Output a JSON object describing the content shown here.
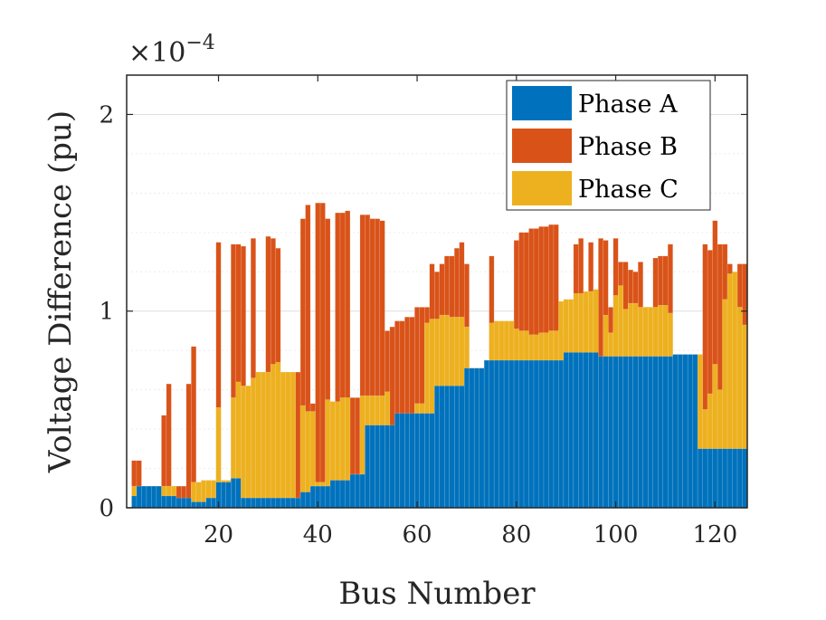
{
  "chart_data": {
    "type": "bar",
    "xlabel": "Bus Number",
    "ylabel": "Voltage Difference (pu)",
    "exponent_prefix": "×10",
    "exponent_power": "−4",
    "xlim": [
      2,
      126
    ],
    "ylim": [
      0,
      2.2
    ],
    "xticks": [
      "20",
      "40",
      "60",
      "80",
      "100",
      "120"
    ],
    "xtick_values": [
      20,
      40,
      60,
      80,
      100,
      120
    ],
    "yticks": [
      "0",
      "1",
      "2"
    ],
    "ytick_values": [
      0,
      1,
      2
    ],
    "grid": true,
    "legend_position": "top-right",
    "series": [
      {
        "name": "Phase A",
        "color": "#0072BD",
        "segments": [
          [
            3,
            3,
            0.06
          ],
          [
            4,
            8,
            0.11
          ],
          [
            9,
            11,
            0.06
          ],
          [
            12,
            14,
            0.05
          ],
          [
            15,
            17,
            0.03
          ],
          [
            18,
            19,
            0.05
          ],
          [
            20,
            22,
            0.13
          ],
          [
            23,
            24,
            0.15
          ],
          [
            25,
            28,
            0.05
          ],
          [
            29,
            31,
            0.05
          ],
          [
            32,
            34,
            0.05
          ],
          [
            35,
            36,
            0.05
          ],
          [
            37,
            38,
            0.08
          ],
          [
            39,
            42,
            0.11
          ],
          [
            43,
            46,
            0.14
          ],
          [
            47,
            49,
            0.17
          ],
          [
            50,
            55,
            0.42
          ],
          [
            56,
            63,
            0.48
          ],
          [
            64,
            69,
            0.62
          ],
          [
            70,
            73,
            0.71
          ],
          [
            74,
            89,
            0.75
          ],
          [
            90,
            91,
            0.79
          ],
          [
            92,
            96,
            0.79
          ],
          [
            97,
            98,
            0.77
          ],
          [
            99,
            111,
            0.77
          ],
          [
            112,
            116,
            0.78
          ],
          [
            117,
            126,
            0.3
          ]
        ]
      },
      {
        "name": "Phase B",
        "color": "#D95319",
        "segments": [
          [
            3,
            4,
            0.24
          ],
          [
            5,
            8,
            0.11
          ],
          [
            9,
            9,
            0.47
          ],
          [
            10,
            10,
            0.63
          ],
          [
            11,
            13,
            0.11
          ],
          [
            14,
            14,
            0.63
          ],
          [
            15,
            15,
            0.82
          ],
          [
            16,
            19,
            0.13
          ],
          [
            20,
            20,
            1.35
          ],
          [
            21,
            22,
            0.13
          ],
          [
            23,
            24,
            1.34
          ],
          [
            25,
            25,
            1.33
          ],
          [
            26,
            26,
            0.62
          ],
          [
            27,
            27,
            1.37
          ],
          [
            28,
            29,
            0.69
          ],
          [
            30,
            30,
            1.38
          ],
          [
            31,
            31,
            1.37
          ],
          [
            32,
            32,
            1.32
          ],
          [
            33,
            36,
            0.69
          ],
          [
            37,
            37,
            1.47
          ],
          [
            38,
            38,
            1.54
          ],
          [
            39,
            39,
            0.53
          ],
          [
            40,
            41,
            1.55
          ],
          [
            42,
            42,
            1.47
          ],
          [
            43,
            43,
            0.54
          ],
          [
            44,
            45,
            1.5
          ],
          [
            46,
            46,
            1.51
          ],
          [
            47,
            48,
            0.56
          ],
          [
            49,
            50,
            1.49
          ],
          [
            51,
            52,
            1.47
          ],
          [
            53,
            53,
            1.46
          ],
          [
            54,
            54,
            0.9
          ],
          [
            55,
            55,
            0.92
          ],
          [
            56,
            57,
            0.95
          ],
          [
            58,
            59,
            0.97
          ],
          [
            60,
            62,
            1.02
          ],
          [
            63,
            63,
            1.24
          ],
          [
            64,
            64,
            1.2
          ],
          [
            65,
            65,
            1.24
          ],
          [
            66,
            67,
            1.28
          ],
          [
            68,
            68,
            1.32
          ],
          [
            69,
            69,
            1.35
          ],
          [
            70,
            70,
            1.24
          ],
          [
            71,
            74,
            0.71
          ],
          [
            75,
            75,
            1.28
          ],
          [
            76,
            79,
            0.94
          ],
          [
            80,
            80,
            1.36
          ],
          [
            81,
            82,
            1.4
          ],
          [
            83,
            84,
            1.42
          ],
          [
            85,
            86,
            1.43
          ],
          [
            87,
            88,
            1.44
          ],
          [
            89,
            91,
            0.9
          ],
          [
            92,
            92,
            1.34
          ],
          [
            93,
            93,
            1.37
          ],
          [
            94,
            94,
            1.01
          ],
          [
            95,
            95,
            1.35
          ],
          [
            96,
            96,
            1.11
          ],
          [
            97,
            97,
            1.37
          ],
          [
            98,
            98,
            1.36
          ],
          [
            99,
            99,
            1.02
          ],
          [
            100,
            100,
            1.37
          ],
          [
            101,
            102,
            1.25
          ],
          [
            103,
            103,
            1.21
          ],
          [
            104,
            104,
            1.2
          ],
          [
            105,
            105,
            1.25
          ],
          [
            106,
            107,
            1.02
          ],
          [
            108,
            108,
            1.27
          ],
          [
            109,
            110,
            1.28
          ],
          [
            111,
            111,
            1.34
          ],
          [
            112,
            117,
            0.78
          ],
          [
            118,
            118,
            1.34
          ],
          [
            119,
            119,
            1.31
          ],
          [
            120,
            120,
            1.46
          ],
          [
            121,
            122,
            1.34
          ],
          [
            123,
            123,
            1.24
          ],
          [
            124,
            124,
            1.19
          ],
          [
            125,
            126,
            1.24
          ]
        ]
      },
      {
        "name": "Phase C",
        "color": "#EDB120",
        "segments": [
          [
            3,
            4,
            0.11
          ],
          [
            5,
            9,
            0.11
          ],
          [
            10,
            11,
            0.11
          ],
          [
            12,
            14,
            0.03
          ],
          [
            15,
            16,
            0.13
          ],
          [
            17,
            19,
            0.14
          ],
          [
            20,
            20,
            0.51
          ],
          [
            21,
            22,
            0.14
          ],
          [
            23,
            23,
            0.56
          ],
          [
            24,
            24,
            0.64
          ],
          [
            25,
            26,
            0.62
          ],
          [
            27,
            27,
            0.66
          ],
          [
            28,
            30,
            0.69
          ],
          [
            31,
            31,
            0.73
          ],
          [
            32,
            32,
            0.74
          ],
          [
            33,
            35,
            0.69
          ],
          [
            36,
            36,
            0.05
          ],
          [
            37,
            37,
            0.52
          ],
          [
            38,
            39,
            0.49
          ],
          [
            40,
            41,
            0.13
          ],
          [
            42,
            42,
            0.55
          ],
          [
            43,
            44,
            0.54
          ],
          [
            45,
            46,
            0.56
          ],
          [
            47,
            48,
            0.17
          ],
          [
            49,
            53,
            0.57
          ],
          [
            54,
            54,
            0.59
          ],
          [
            55,
            55,
            0.31
          ],
          [
            56,
            56,
            0.4
          ],
          [
            57,
            58,
            0.44
          ],
          [
            59,
            59,
            0.43
          ],
          [
            60,
            61,
            0.53
          ],
          [
            62,
            62,
            0.94
          ],
          [
            63,
            64,
            0.96
          ],
          [
            65,
            66,
            0.98
          ],
          [
            67,
            69,
            0.97
          ],
          [
            70,
            70,
            0.92
          ],
          [
            71,
            74,
            0.71
          ],
          [
            75,
            75,
            0.94
          ],
          [
            76,
            79,
            0.95
          ],
          [
            80,
            80,
            0.91
          ],
          [
            81,
            82,
            0.9
          ],
          [
            83,
            84,
            0.88
          ],
          [
            85,
            86,
            0.89
          ],
          [
            87,
            88,
            0.9
          ],
          [
            89,
            89,
            1.05
          ],
          [
            90,
            91,
            1.06
          ],
          [
            92,
            93,
            1.09
          ],
          [
            94,
            95,
            1.1
          ],
          [
            96,
            96,
            1.11
          ],
          [
            97,
            97,
            0.58
          ],
          [
            98,
            98,
            0.98
          ],
          [
            99,
            99,
            0.89
          ],
          [
            100,
            100,
            1.08
          ],
          [
            101,
            101,
            1.13
          ],
          [
            102,
            102,
            1.01
          ],
          [
            103,
            104,
            1.04
          ],
          [
            105,
            106,
            1.02
          ],
          [
            107,
            108,
            1.02
          ],
          [
            109,
            110,
            1.03
          ],
          [
            111,
            111,
            0.99
          ],
          [
            112,
            117,
            0.78
          ],
          [
            118,
            118,
            0.5
          ],
          [
            119,
            119,
            0.58
          ],
          [
            120,
            120,
            0.73
          ],
          [
            121,
            121,
            0.6
          ],
          [
            122,
            122,
            1.06
          ],
          [
            123,
            123,
            1.19
          ],
          [
            124,
            124,
            1.2
          ],
          [
            125,
            125,
            1.02
          ],
          [
            126,
            126,
            0.93
          ]
        ]
      }
    ]
  }
}
